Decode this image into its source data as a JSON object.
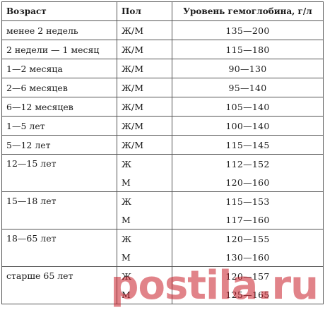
{
  "headers": {
    "age": "Возраст",
    "sex": "Пол",
    "hemoglobin": "Уровень гемоглобина, г/л"
  },
  "single_rows": [
    {
      "age": "менее 2 недель",
      "sex": "Ж/М",
      "value": "135—200"
    },
    {
      "age": "2 недели — 1 месяц",
      "sex": "Ж/М",
      "value": "115—180"
    },
    {
      "age": "1—2 месяца",
      "sex": "Ж/М",
      "value": "90—130"
    },
    {
      "age": "2—6 месяцев",
      "sex": "Ж/М",
      "value": "95—140"
    },
    {
      "age": "6—12 месяцев",
      "sex": "Ж/М",
      "value": "105—140"
    },
    {
      "age": "1—5 лет",
      "sex": "Ж/М",
      "value": "100—140"
    },
    {
      "age": "5—12 лет",
      "sex": "Ж/М",
      "value": "115—145"
    }
  ],
  "split_rows": [
    {
      "age": "12—15 лет",
      "female": {
        "sex": "Ж",
        "value": "112—152"
      },
      "male": {
        "sex": "М",
        "value": "120—160"
      }
    },
    {
      "age": "15—18 лет",
      "female": {
        "sex": "Ж",
        "value": "115—153"
      },
      "male": {
        "sex": "М",
        "value": "117—160"
      }
    },
    {
      "age": "18—65 лет",
      "female": {
        "sex": "Ж",
        "value": "120—155"
      },
      "male": {
        "sex": "М",
        "value": "130—160"
      }
    },
    {
      "age": "старше 65 лет",
      "female": {
        "sex": "Ж",
        "value": "120—157"
      },
      "male": {
        "sex": "М",
        "value": "125—165"
      }
    }
  ],
  "watermark": {
    "text": "postila.ru",
    "color": "#c81e28"
  }
}
